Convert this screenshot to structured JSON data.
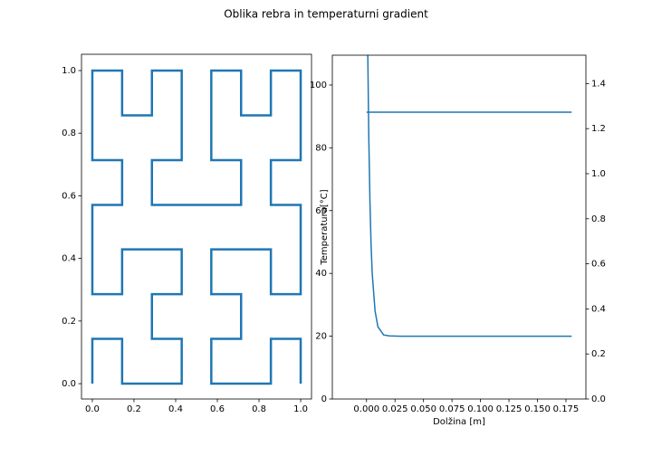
{
  "title": "Oblika rebra in temperaturni gradient",
  "chart_data": [
    {
      "type": "line",
      "x": [
        0,
        0,
        0.143,
        0.143,
        0.429,
        0.429,
        0.286,
        0.286,
        0.429,
        0.429,
        0.143,
        0.143,
        0,
        0,
        0.143,
        0.143,
        0,
        0,
        0.143,
        0.143,
        0.286,
        0.286,
        0.429,
        0.429,
        0.286,
        0.286,
        0.714,
        0.714,
        0.571,
        0.571,
        0.714,
        0.714,
        0.857,
        0.857,
        1,
        1,
        0.857,
        0.857,
        1,
        1,
        0.857,
        0.857,
        0.571,
        0.571,
        0.714,
        0.714,
        0.571,
        0.571,
        0.857,
        0.857,
        1,
        1
      ],
      "series": [
        {
          "color": "#1f77b4",
          "linewidth": 2.5,
          "values": [
            0,
            0.143,
            0.143,
            0,
            0,
            0.143,
            0.143,
            0.286,
            0.286,
            0.429,
            0.429,
            0.286,
            0.286,
            0.571,
            0.571,
            0.714,
            0.714,
            1,
            1,
            0.857,
            0.857,
            1,
            1,
            0.714,
            0.714,
            0.571,
            0.571,
            0.714,
            0.714,
            1,
            1,
            0.857,
            0.857,
            1,
            1,
            0.714,
            0.714,
            0.571,
            0.571,
            0.286,
            0.286,
            0.429,
            0.429,
            0.286,
            0.286,
            0.143,
            0.143,
            0,
            0,
            0.143,
            0.143,
            0
          ]
        }
      ],
      "xlim": [
        -0.052,
        1.052
      ],
      "ylim": [
        -0.049,
        1.052
      ],
      "xticks": [
        {
          "value": 0,
          "label": "0.0"
        },
        0.2,
        0.4,
        0.6,
        0.8,
        {
          "value": 1,
          "label": "1.0"
        }
      ],
      "yticks": [
        {
          "value": 0,
          "label": "0.0"
        },
        0.2,
        0.4,
        0.6,
        0.8,
        {
          "value": 1,
          "label": "1.0"
        }
      ]
    },
    {
      "type": "line",
      "x_label": "Dolžina [m]",
      "y_label": "Temperatura[°C]",
      "x": [
        0,
        0.001,
        0.002,
        0.003,
        0.004,
        0.005,
        0.0075,
        0.01,
        0.015,
        0.02,
        0.03,
        0.05,
        0.08,
        0.1,
        0.13,
        0.15,
        0.18
      ],
      "series": [
        {
          "color": "#1f77b4",
          "linewidth": 1.5,
          "values": [
            157,
            113,
            83,
            63,
            49,
            40,
            28,
            23,
            20.4,
            20.1,
            20,
            20,
            20,
            20,
            20,
            20,
            20
          ]
        },
        {
          "color": "#1f77b4",
          "linewidth": 1.5,
          "axis": "y2",
          "values": [
            1.273,
            1.273,
            1.273,
            1.273,
            1.273,
            1.273,
            1.273,
            1.273,
            1.273,
            1.273,
            1.273,
            1.273,
            1.273,
            1.273,
            1.273,
            1.273,
            1.273
          ]
        }
      ],
      "xlim": [
        -0.03,
        0.1925
      ],
      "ylim": [
        0,
        109.5
      ],
      "y2lim": [
        0,
        1.526
      ],
      "xticks": [
        {
          "value": 0,
          "label": "0.000"
        },
        {
          "value": 0.025,
          "label": "0.025"
        },
        {
          "value": 0.05,
          "label": "0.050"
        },
        {
          "value": 0.075,
          "label": "0.075"
        },
        {
          "value": 0.1,
          "label": "0.100"
        },
        {
          "value": 0.125,
          "label": "0.125"
        },
        {
          "value": 0.15,
          "label": "0.150"
        },
        {
          "value": 0.175,
          "label": "0.175"
        }
      ],
      "yticks": [
        0,
        20,
        40,
        60,
        80,
        100
      ],
      "y2ticks": [
        {
          "value": 0,
          "label": "0.0"
        },
        0.2,
        0.4,
        0.6,
        0.8,
        {
          "value": 1,
          "label": "1.0"
        },
        1.2,
        1.4
      ]
    }
  ]
}
